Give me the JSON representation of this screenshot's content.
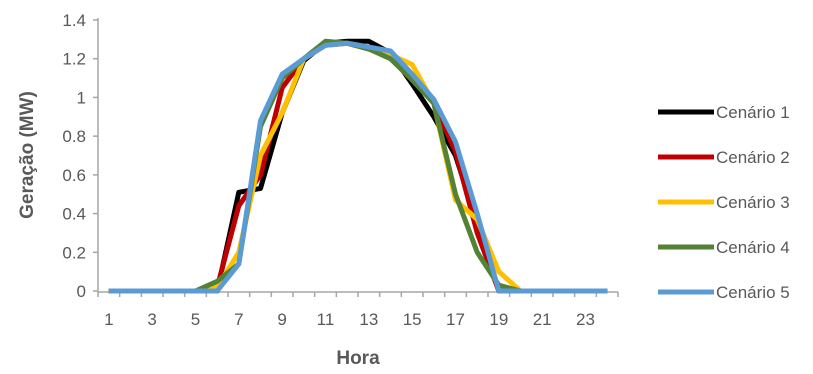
{
  "chart_data": {
    "type": "line",
    "title": "",
    "xlabel": "Hora",
    "ylabel": "Geração (MW)",
    "xlim": [
      1,
      24
    ],
    "ylim": [
      0,
      1.4
    ],
    "x": [
      1,
      2,
      3,
      4,
      5,
      6,
      7,
      8,
      9,
      10,
      11,
      12,
      13,
      14,
      15,
      16,
      17,
      18,
      19,
      20,
      21,
      22,
      23,
      24
    ],
    "x_ticks": [
      "1",
      "3",
      "5",
      "7",
      "9",
      "11",
      "13",
      "15",
      "17",
      "19",
      "21",
      "23"
    ],
    "x_tick_values": [
      1,
      3,
      5,
      7,
      9,
      11,
      13,
      15,
      17,
      19,
      21,
      23
    ],
    "y_ticks": [
      "0",
      "0.2",
      "0.4",
      "0.6",
      "0.8",
      "1",
      "1.2",
      "1.4"
    ],
    "y_tick_values": [
      0,
      0.2,
      0.4,
      0.6,
      0.8,
      1,
      1.2,
      1.4
    ],
    "grid": false,
    "legend_position": "right",
    "series": [
      {
        "name": "Cenário 1",
        "color": "#000000",
        "values": [
          0,
          0,
          0,
          0,
          0,
          0,
          0.51,
          0.53,
          0.92,
          1.19,
          1.28,
          1.29,
          1.29,
          1.23,
          1.07,
          0.9,
          0.7,
          0.35,
          0,
          0,
          0,
          0,
          0,
          0
        ]
      },
      {
        "name": "Cenário 2",
        "color": "#c00000",
        "values": [
          0,
          0,
          0,
          0,
          0,
          0.02,
          0.44,
          0.6,
          1.05,
          1.2,
          1.27,
          1.28,
          1.25,
          1.23,
          1.1,
          0.97,
          0.72,
          0.3,
          0,
          0,
          0,
          0,
          0,
          0
        ]
      },
      {
        "name": "Cenário 3",
        "color": "#ffc000",
        "values": [
          0,
          0,
          0,
          0,
          0,
          0.02,
          0.2,
          0.7,
          0.92,
          1.2,
          1.27,
          1.28,
          1.26,
          1.22,
          1.17,
          0.97,
          0.47,
          0.37,
          0.1,
          0,
          0,
          0,
          0,
          0
        ]
      },
      {
        "name": "Cenário 4",
        "color": "#548235",
        "values": [
          0,
          0,
          0,
          0,
          0,
          0.05,
          0.14,
          0.85,
          1.1,
          1.2,
          1.29,
          1.28,
          1.25,
          1.2,
          1.09,
          0.97,
          0.5,
          0.2,
          0.03,
          0,
          0,
          0,
          0,
          0
        ]
      },
      {
        "name": "Cenário 5",
        "color": "#5b9bd5",
        "values": [
          0,
          0,
          0,
          0,
          0,
          0,
          0.14,
          0.88,
          1.12,
          1.2,
          1.27,
          1.28,
          1.26,
          1.24,
          1.12,
          0.99,
          0.77,
          0.4,
          0,
          0,
          0,
          0,
          0,
          0
        ]
      }
    ]
  }
}
